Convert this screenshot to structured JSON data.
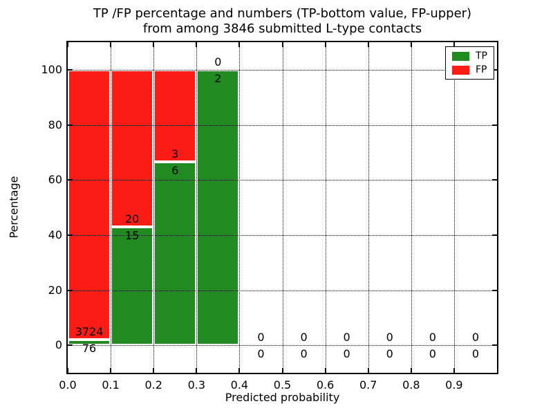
{
  "figure": {
    "title_line1": "TP /FP percentage and numbers (TP-bottom value, FP-upper)",
    "title_line2": "from among 3846 submitted L-type contacts"
  },
  "chart_data": {
    "type": "bar",
    "stacked": true,
    "title": "TP /FP percentage and numbers (TP-bottom value, FP-upper)\nfrom among 3846 submitted L-type contacts",
    "xlabel": "Predicted probability",
    "ylabel": "Percentage",
    "total_submitted_contacts": 3846,
    "label_convention": "TP-bottom value, FP-upper",
    "bins": [
      {
        "x0": 0.0,
        "x1": 0.1,
        "tp": 76,
        "fp": 3724,
        "tp_pct": 2.0,
        "fp_pct": 98.0
      },
      {
        "x0": 0.1,
        "x1": 0.2,
        "tp": 15,
        "fp": 20,
        "tp_pct": 42.857,
        "fp_pct": 57.143
      },
      {
        "x0": 0.2,
        "x1": 0.3,
        "tp": 6,
        "fp": 3,
        "tp_pct": 66.667,
        "fp_pct": 33.333
      },
      {
        "x0": 0.3,
        "x1": 0.4,
        "tp": 2,
        "fp": 0,
        "tp_pct": 100.0,
        "fp_pct": 0.0
      },
      {
        "x0": 0.4,
        "x1": 0.5,
        "tp": 0,
        "fp": 0,
        "tp_pct": 0.0,
        "fp_pct": 0.0
      },
      {
        "x0": 0.5,
        "x1": 0.6,
        "tp": 0,
        "fp": 0,
        "tp_pct": 0.0,
        "fp_pct": 0.0
      },
      {
        "x0": 0.6,
        "x1": 0.7,
        "tp": 0,
        "fp": 0,
        "tp_pct": 0.0,
        "fp_pct": 0.0
      },
      {
        "x0": 0.7,
        "x1": 0.8,
        "tp": 0,
        "fp": 0,
        "tp_pct": 0.0,
        "fp_pct": 0.0
      },
      {
        "x0": 0.8,
        "x1": 0.9,
        "tp": 0,
        "fp": 0,
        "tp_pct": 0.0,
        "fp_pct": 0.0
      },
      {
        "x0": 0.9,
        "x1": 1.0,
        "tp": 0,
        "fp": 0,
        "tp_pct": 0.0,
        "fp_pct": 0.0
      }
    ],
    "xticks": {
      "values": [
        0.0,
        0.1,
        0.2,
        0.3,
        0.4,
        0.5,
        0.6,
        0.7,
        0.8,
        0.9
      ],
      "labels": [
        "0.0",
        "0.1",
        "0.2",
        "0.3",
        "0.4",
        "0.5",
        "0.6",
        "0.7",
        "0.8",
        "0.9"
      ]
    },
    "yticks": {
      "values": [
        0,
        20,
        40,
        60,
        80,
        100
      ],
      "labels": [
        "0",
        "20",
        "40",
        "60",
        "80",
        "100"
      ]
    },
    "xlim": [
      0,
      1
    ],
    "ylim": [
      -10,
      110
    ],
    "grid": "dotted",
    "legend": {
      "position": "upper right",
      "entries": [
        {
          "label": "TP",
          "color": "#218a21"
        },
        {
          "label": "FP",
          "color": "#fb1d15"
        }
      ]
    },
    "colors": {
      "tp": "#218a21",
      "fp": "#fb1d15",
      "bar_edge": "#ffffff",
      "axis": "#000000",
      "background": "#ffffff"
    }
  }
}
